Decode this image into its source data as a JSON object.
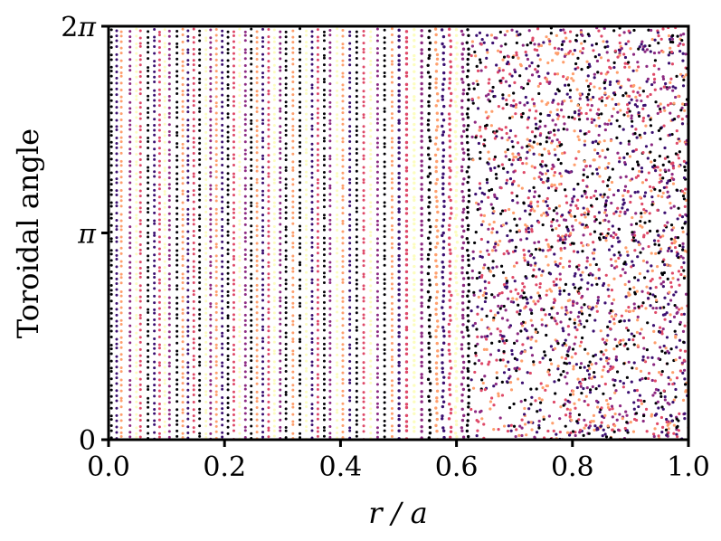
{
  "chart_data": {
    "type": "scatter",
    "title": "",
    "xlabel": "r / a",
    "ylabel": "Toroidal angle",
    "xlim": [
      0.0,
      1.0
    ],
    "ylim": [
      0,
      6.2832
    ],
    "x_ticks": [
      0.0,
      0.2,
      0.4,
      0.6,
      0.8,
      1.0
    ],
    "x_tick_labels": [
      "0.0",
      "0.2",
      "0.4",
      "0.6",
      "0.8",
      "1.0"
    ],
    "y_ticks": [
      0,
      3.1416,
      6.2832
    ],
    "y_tick_labels": [
      "0",
      "π",
      "2π"
    ],
    "grid": false,
    "legend": "none",
    "colormap": [
      "#000004",
      "#3b0f70",
      "#8c2981",
      "#de4968",
      "#fe9f6d",
      "#fcfdbf"
    ],
    "series": [
      {
        "x": 0.0,
        "color": "#000004"
      },
      {
        "x": 0.005,
        "color": "#000004"
      },
      {
        "x": 0.014,
        "color": "#3b0f70"
      },
      {
        "x": 0.022,
        "color": "#fe9f6d"
      },
      {
        "x": 0.037,
        "color": "#8c2981"
      },
      {
        "x": 0.048,
        "color": "#fcfdbf"
      },
      {
        "x": 0.055,
        "color": "#de4968"
      },
      {
        "x": 0.068,
        "color": "#000004"
      },
      {
        "x": 0.079,
        "color": "#3b0f70"
      },
      {
        "x": 0.088,
        "color": "#de4968"
      },
      {
        "x": 0.097,
        "color": "#fcfdbf"
      },
      {
        "x": 0.105,
        "color": "#8c2981"
      },
      {
        "x": 0.118,
        "color": "#000004"
      },
      {
        "x": 0.128,
        "color": "#fe9f6d"
      },
      {
        "x": 0.137,
        "color": "#3b0f70"
      },
      {
        "x": 0.147,
        "color": "#de4968"
      },
      {
        "x": 0.157,
        "color": "#000004"
      },
      {
        "x": 0.168,
        "color": "#fcfdbf"
      },
      {
        "x": 0.176,
        "color": "#8c2981"
      },
      {
        "x": 0.186,
        "color": "#fe9f6d"
      },
      {
        "x": 0.196,
        "color": "#3b0f70"
      },
      {
        "x": 0.206,
        "color": "#000004"
      },
      {
        "x": 0.216,
        "color": "#de4968"
      },
      {
        "x": 0.226,
        "color": "#fcfdbf"
      },
      {
        "x": 0.236,
        "color": "#8c2981"
      },
      {
        "x": 0.246,
        "color": "#000004"
      },
      {
        "x": 0.256,
        "color": "#fe9f6d"
      },
      {
        "x": 0.266,
        "color": "#3b0f70"
      },
      {
        "x": 0.276,
        "color": "#de4968"
      },
      {
        "x": 0.286,
        "color": "#fcfdbf"
      },
      {
        "x": 0.296,
        "color": "#8c2981"
      },
      {
        "x": 0.306,
        "color": "#000004"
      },
      {
        "x": 0.318,
        "color": "#fe9f6d"
      },
      {
        "x": 0.33,
        "color": "#000004"
      },
      {
        "x": 0.341,
        "color": "#fcfdbf"
      },
      {
        "x": 0.351,
        "color": "#3b0f70"
      },
      {
        "x": 0.361,
        "color": "#de4968"
      },
      {
        "x": 0.372,
        "color": "#000004"
      },
      {
        "x": 0.382,
        "color": "#8c2981"
      },
      {
        "x": 0.394,
        "color": "#fcfdbf"
      },
      {
        "x": 0.404,
        "color": "#fe9f6d"
      },
      {
        "x": 0.416,
        "color": "#3b0f70"
      },
      {
        "x": 0.428,
        "color": "#000004"
      },
      {
        "x": 0.44,
        "color": "#de4968"
      },
      {
        "x": 0.452,
        "color": "#fcfdbf"
      },
      {
        "x": 0.464,
        "color": "#8c2981"
      },
      {
        "x": 0.476,
        "color": "#000004"
      },
      {
        "x": 0.489,
        "color": "#fe9f6d"
      },
      {
        "x": 0.501,
        "color": "#3b0f70"
      },
      {
        "x": 0.514,
        "color": "#de4968"
      },
      {
        "x": 0.527,
        "color": "#fcfdbf"
      },
      {
        "x": 0.54,
        "color": "#8c2981"
      },
      {
        "x": 0.553,
        "color": "#000004"
      },
      {
        "x": 0.566,
        "color": "#fe9f6d"
      },
      {
        "x": 0.577,
        "color": "#3b0f70"
      },
      {
        "x": 0.589,
        "color": "#de4968"
      },
      {
        "x": 0.6,
        "color": "#fcfdbf"
      },
      {
        "x": 0.611,
        "color": "#8c2981"
      },
      {
        "x": 0.62,
        "color": "#000004"
      }
    ]
  }
}
